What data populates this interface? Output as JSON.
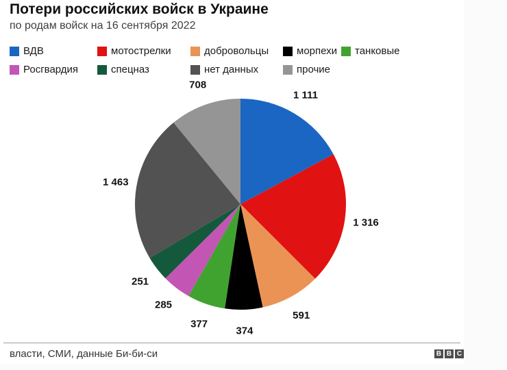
{
  "header": {
    "title": "Потери российских войск в Украине",
    "subtitle": "по родам войск на 16 сентября 2022"
  },
  "chart_data": {
    "type": "pie",
    "title": "Потери российских войск в Украине",
    "subtitle": "по родам войск на 16 сентября 2022",
    "total": 6476,
    "start_angle_deg": 0,
    "direction": "clockwise",
    "legend_position": "top",
    "slices": [
      {
        "name": "vdv",
        "label": "ВДВ",
        "value": 1111,
        "display": "1 111",
        "color": "#1b66c2"
      },
      {
        "name": "motostrelki",
        "label": "мотострелки",
        "value": 1316,
        "display": "1 316",
        "color": "#e11212"
      },
      {
        "name": "dobrovolcy",
        "label": "добровольцы",
        "value": 591,
        "display": "591",
        "color": "#eb9355"
      },
      {
        "name": "morpehi",
        "label": "морпехи",
        "value": 374,
        "display": "374",
        "color": "#000000"
      },
      {
        "name": "tankovye",
        "label": "танковые",
        "value": 377,
        "display": "377",
        "color": "#41a32f"
      },
      {
        "name": "rosgvardiya",
        "label": "Росгвардия",
        "value": 285,
        "display": "285",
        "color": "#c355b5"
      },
      {
        "name": "specnaz",
        "label": "спецназ",
        "value": 251,
        "display": "251",
        "color": "#14593b"
      },
      {
        "name": "net-dannyh",
        "label": "нет данных",
        "value": 1463,
        "display": "1 463",
        "color": "#525252"
      },
      {
        "name": "prochie",
        "label": "прочие",
        "value": 708,
        "display": "708",
        "color": "#959595"
      }
    ]
  },
  "footer": {
    "source": "власти, СМИ, данные Би-би-си",
    "logo": [
      "B",
      "B",
      "C"
    ]
  }
}
